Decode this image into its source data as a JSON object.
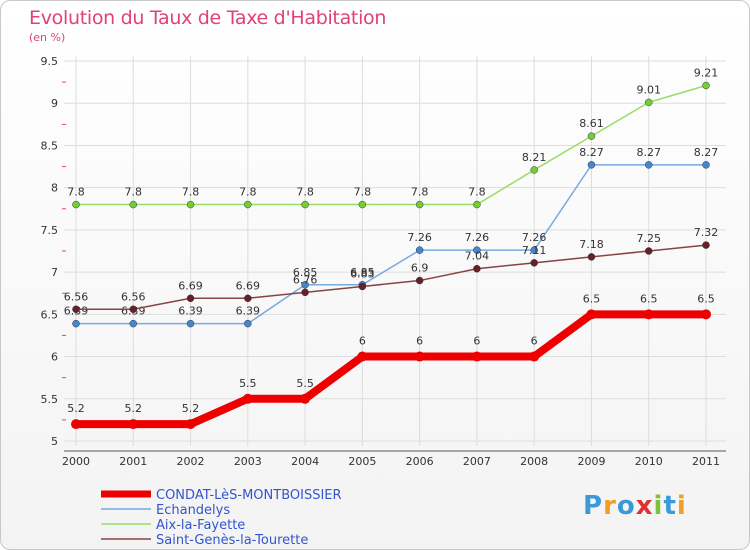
{
  "title": "Evolution du Taux de Taxe d'Habitation",
  "subtitle": "(en %)",
  "logo": [
    "P",
    "r",
    "o",
    "x",
    "i",
    "t",
    "i"
  ],
  "logo_colors": [
    "#3a9ad9",
    "#f0a020",
    "#3a9ad9",
    "#e03030",
    "#80c040",
    "#3a9ad9",
    "#f0a020"
  ],
  "chart_data": {
    "type": "line",
    "x": [
      "2000",
      "2001",
      "2002",
      "2003",
      "2004",
      "2005",
      "2006",
      "2007",
      "2008",
      "2009",
      "2010",
      "2011"
    ],
    "ylim": [
      5,
      9.5
    ],
    "yticks": [
      "5",
      "5.5",
      "6",
      "6.5",
      "7",
      "7.5",
      "8",
      "8.5",
      "9",
      "9.5"
    ],
    "grid": true,
    "legend": "bottom-left",
    "series": [
      {
        "name": "Aix-la-Fayette",
        "color": "#99dd66",
        "point": "#77cc33",
        "width": 1.5,
        "values": [
          7.8,
          7.8,
          7.8,
          7.8,
          7.8,
          7.8,
          7.8,
          7.8,
          8.21,
          8.61,
          9.01,
          9.21
        ],
        "labels": [
          "7.8",
          "7.8",
          "7.8",
          "7.8",
          "7.8",
          "7.8",
          "7.8",
          "7.8",
          "8.21",
          "8.61",
          "9.01",
          "9.21"
        ]
      },
      {
        "name": "Echandelys",
        "color": "#77aadd",
        "point": "#4488cc",
        "width": 1.5,
        "values": [
          6.39,
          6.39,
          6.39,
          6.39,
          6.85,
          6.85,
          7.26,
          7.26,
          7.26,
          8.27,
          8.27,
          8.27
        ],
        "labels": [
          "6.39",
          "6.39",
          "6.39",
          "6.39",
          "6.85",
          "6.85",
          "7.26",
          "7.26",
          "7.26",
          "8.27",
          "8.27",
          "8.27"
        ]
      },
      {
        "name": "Saint-Genès-la-Tourette",
        "color": "#884444",
        "point": "#662222",
        "width": 1.5,
        "values": [
          6.56,
          6.56,
          6.69,
          6.69,
          6.76,
          6.83,
          6.9,
          7.04,
          7.11,
          7.18,
          7.25,
          7.32
        ],
        "labels": [
          "6.56",
          "6.56",
          "6.69",
          "6.69",
          "6.76",
          "6.83",
          "6.9",
          "7.04",
          "7.11",
          "7.18",
          "7.25",
          "7.32"
        ]
      },
      {
        "name": "CONDAT-LèS-MONTBOISSIER",
        "color": "#ee0000",
        "point": "#ee0000",
        "width": 8,
        "values": [
          5.2,
          5.2,
          5.2,
          5.5,
          5.5,
          6,
          6,
          6,
          6,
          6.5,
          6.5,
          6.5
        ],
        "labels": [
          "5.2",
          "5.2",
          "5.2",
          "5.5",
          "5.5",
          "6",
          "6",
          "6",
          "6",
          "6.5",
          "6.5",
          "6.5"
        ]
      }
    ],
    "legend_order": [
      3,
      1,
      0,
      2
    ]
  }
}
